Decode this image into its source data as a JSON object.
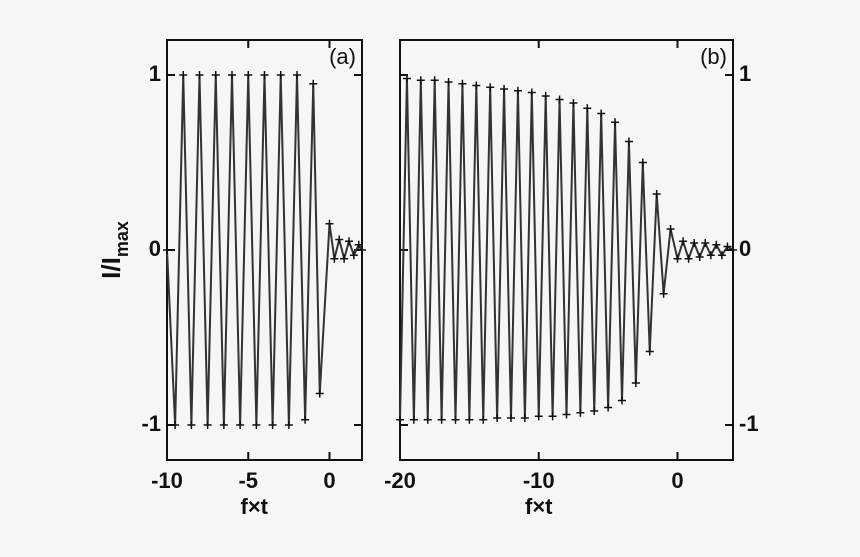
{
  "chart_data": [
    {
      "type": "line",
      "panel_label": "(a)",
      "xlabel": "f×t",
      "ylabel": "I/I",
      "ylabel_subscript": "max",
      "xlim": [
        -10,
        2
      ],
      "ylim": [
        -1.2,
        1.2
      ],
      "xticks": [
        -10,
        -5,
        0
      ],
      "yticks": [
        -1,
        0,
        1
      ],
      "ytick_side": "left",
      "color": "#333333",
      "x": [
        -10,
        -9.5,
        -9,
        -8.5,
        -8,
        -7.5,
        -7,
        -6.5,
        -6,
        -5.5,
        -5,
        -4.5,
        -4,
        -3.5,
        -3,
        -2.5,
        -2,
        -1.5,
        -1,
        -0.6,
        0,
        0.3,
        0.6,
        0.9,
        1.2,
        1.5,
        1.8,
        2
      ],
      "values": [
        0,
        -1,
        1,
        -1,
        1,
        -1,
        1,
        -1,
        1,
        -1,
        1,
        -1,
        1,
        -1,
        1,
        -1,
        1,
        -0.97,
        0.95,
        -0.82,
        0.15,
        -0.05,
        0.06,
        -0.05,
        0.05,
        -0.03,
        0.03,
        0
      ]
    },
    {
      "type": "line",
      "panel_label": "(b)",
      "xlabel": "f×t",
      "xlim": [
        -20,
        4
      ],
      "ylim": [
        -1.2,
        1.2
      ],
      "xticks": [
        -20,
        -10,
        0
      ],
      "yticks": [
        -1,
        0,
        1
      ],
      "ytick_side": "right",
      "color": "#333333",
      "x": [
        -20,
        -19.5,
        -19,
        -18.5,
        -18,
        -17.5,
        -17,
        -16.5,
        -16,
        -15.5,
        -15,
        -14.5,
        -14,
        -13.5,
        -13,
        -12.5,
        -12,
        -11.5,
        -11,
        -10.5,
        -10,
        -9.5,
        -9,
        -8.5,
        -8,
        -7.5,
        -7,
        -6.5,
        -6,
        -5.5,
        -5,
        -4.5,
        -4,
        -3.5,
        -3,
        -2.5,
        -2,
        -1.5,
        -1,
        -0.5,
        0,
        0.4,
        0.8,
        1.2,
        1.6,
        2,
        2.4,
        2.8,
        3.2,
        3.6,
        4
      ],
      "values": [
        -0.97,
        0.98,
        -0.97,
        0.97,
        -0.97,
        0.97,
        -0.97,
        0.96,
        -0.97,
        0.95,
        -0.97,
        0.94,
        -0.97,
        0.93,
        -0.96,
        0.92,
        -0.96,
        0.91,
        -0.96,
        0.9,
        -0.95,
        0.88,
        -0.95,
        0.86,
        -0.94,
        0.84,
        -0.93,
        0.81,
        -0.92,
        0.78,
        -0.9,
        0.73,
        -0.86,
        0.62,
        -0.76,
        0.5,
        -0.58,
        0.32,
        -0.25,
        0.12,
        -0.05,
        0.05,
        -0.05,
        0.04,
        -0.04,
        0.04,
        -0.03,
        0.03,
        -0.03,
        0.02,
        0
      ]
    }
  ]
}
